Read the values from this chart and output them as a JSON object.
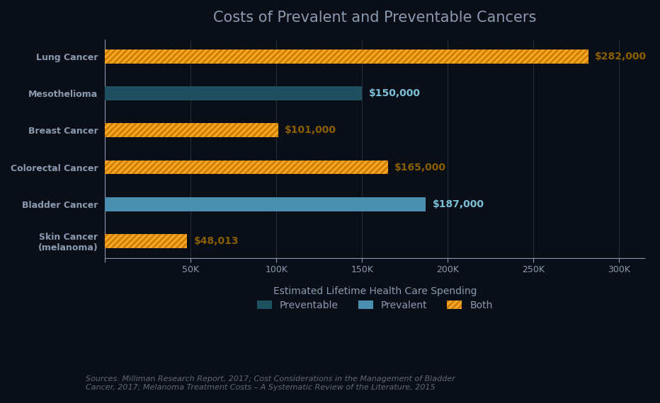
{
  "title": "Costs of Prevalent and Preventable Cancers",
  "xlabel": "Estimated Lifetime Health Care Spending",
  "categories": [
    "Lung Cancer",
    "Mesothelioma",
    "Breast Cancer",
    "Colorectal Cancer",
    "Bladder Cancer",
    "Skin Cancer\n(melanoma)"
  ],
  "values": [
    282000,
    150000,
    101000,
    165000,
    187000,
    48013
  ],
  "labels": [
    "$282,000",
    "$150,000",
    "$101,000",
    "$165,000",
    "$187,000",
    "$48,013"
  ],
  "bar_types": [
    "both",
    "preventable",
    "both",
    "both",
    "prevalent",
    "both"
  ],
  "colors": {
    "preventable": "#1e5060",
    "prevalent": "#4a8faf",
    "both": "#f5a623"
  },
  "hatch_colors": {
    "preventable": "#1e5060",
    "prevalent": "#4a8faf",
    "both": "#cc7a00"
  },
  "hatch_types": {
    "preventable": "",
    "prevalent": "",
    "both": "////"
  },
  "label_colors": {
    "preventable": "#7cc0d8",
    "prevalent": "#7cc0d8",
    "both": "#8b5e00"
  },
  "background_color": "#0a0e17",
  "text_color": "#8a9ab0",
  "title_color": "#8a9ab0",
  "axis_color": "#8a9ab0",
  "tick_color": "#8a9ab0",
  "xlim": [
    0,
    315000
  ],
  "xticks": [
    0,
    50000,
    100000,
    150000,
    200000,
    250000,
    300000
  ],
  "xtick_labels": [
    "",
    "50K",
    "100K",
    "150K",
    "200K",
    "250K",
    "300K"
  ],
  "legend_labels": [
    "Preventable",
    "Prevalent",
    "Both"
  ],
  "legend_types": [
    "preventable",
    "prevalent",
    "both"
  ],
  "source_text": "Sources: Milliman Research Report, 2017; Cost Considerations in the Management of Bladder\nCancer, 2017; Melanoma Treatment Costs – A Systematic Review of the Literature, 2015",
  "title_fontsize": 15,
  "label_fontsize": 10,
  "tick_fontsize": 9,
  "source_fontsize": 8,
  "bar_height": 0.38,
  "y_label_fontsize": 9
}
